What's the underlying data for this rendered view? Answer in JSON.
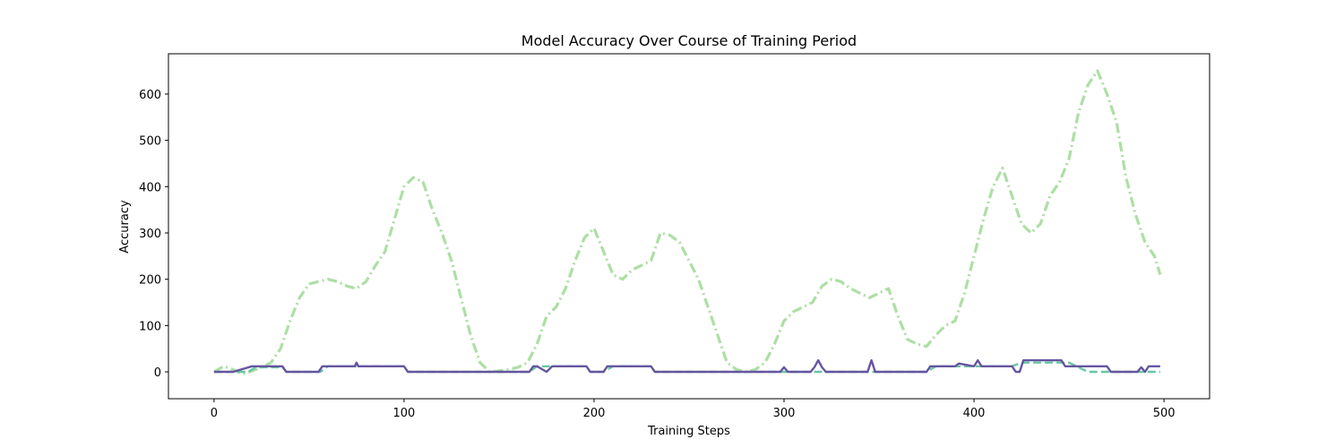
{
  "chart_data": {
    "type": "line",
    "title": "Model Accuracy Over Course of Training Period",
    "xlabel": "Training Steps",
    "ylabel": "Accuracy",
    "xlim": [
      -24,
      524
    ],
    "ylim": [
      -58,
      687
    ],
    "xticks": [
      0,
      100,
      200,
      300,
      400,
      500
    ],
    "yticks": [
      0,
      100,
      200,
      300,
      400,
      500,
      600
    ],
    "grid": false,
    "legend": "none",
    "series": [
      {
        "style": "dashdot",
        "color": "#addfa4",
        "width": 3.2,
        "x": [
          0,
          5,
          10,
          15,
          20,
          25,
          30,
          35,
          40,
          45,
          50,
          55,
          60,
          65,
          70,
          75,
          80,
          85,
          90,
          95,
          100,
          105,
          110,
          115,
          120,
          125,
          130,
          135,
          140,
          145,
          150,
          155,
          160,
          165,
          170,
          175,
          180,
          185,
          190,
          195,
          200,
          205,
          210,
          215,
          220,
          225,
          230,
          235,
          240,
          245,
          250,
          255,
          260,
          265,
          270,
          275,
          280,
          285,
          290,
          295,
          300,
          305,
          310,
          315,
          320,
          325,
          330,
          335,
          340,
          345,
          350,
          355,
          360,
          365,
          370,
          375,
          380,
          385,
          390,
          395,
          400,
          405,
          410,
          415,
          420,
          425,
          430,
          435,
          440,
          445,
          450,
          455,
          460,
          465,
          470,
          475,
          480,
          485,
          490,
          495,
          498
        ],
        "y": [
          0,
          12,
          5,
          -5,
          2,
          10,
          20,
          50,
          110,
          160,
          190,
          195,
          200,
          195,
          185,
          180,
          195,
          230,
          260,
          330,
          400,
          420,
          410,
          350,
          300,
          240,
          160,
          80,
          20,
          0,
          2,
          5,
          10,
          20,
          60,
          120,
          140,
          180,
          240,
          290,
          310,
          260,
          210,
          200,
          220,
          230,
          240,
          300,
          295,
          280,
          240,
          200,
          140,
          80,
          20,
          5,
          0,
          5,
          20,
          60,
          110,
          130,
          140,
          150,
          185,
          200,
          195,
          180,
          170,
          160,
          170,
          180,
          120,
          70,
          60,
          55,
          80,
          100,
          110,
          170,
          250,
          330,
          400,
          440,
          380,
          320,
          300,
          320,
          380,
          410,
          460,
          560,
          620,
          650,
          600,
          540,
          420,
          340,
          280,
          250,
          210
        ]
      },
      {
        "style": "solid",
        "color": "#6655a0",
        "width": 2.4,
        "x": [
          0,
          10,
          20,
          36,
          38,
          55,
          57,
          74,
          75,
          76,
          100,
          102,
          166,
          168,
          170,
          175,
          178,
          180,
          185,
          190,
          196,
          198,
          205,
          207,
          230,
          232,
          298,
          300,
          302,
          314,
          316,
          318,
          320,
          322,
          344,
          346,
          348,
          350,
          375,
          377,
          390,
          392,
          400,
          402,
          404,
          406,
          420,
          422,
          424,
          426,
          446,
          448,
          470,
          472,
          486,
          488,
          490,
          492,
          498
        ],
        "y": [
          0,
          0,
          12,
          12,
          0,
          0,
          12,
          12,
          20,
          12,
          12,
          0,
          0,
          12,
          12,
          0,
          12,
          12,
          12,
          12,
          12,
          0,
          0,
          12,
          12,
          0,
          0,
          10,
          0,
          0,
          10,
          25,
          10,
          0,
          0,
          25,
          0,
          0,
          0,
          12,
          12,
          18,
          12,
          25,
          12,
          12,
          12,
          0,
          0,
          25,
          25,
          12,
          12,
          0,
          0,
          10,
          0,
          12,
          12
        ]
      },
      {
        "style": "dashed",
        "color": "#68c6a4",
        "width": 2.4,
        "x": [
          0,
          18,
          22,
          36,
          38,
          56,
          60,
          100,
          102,
          166,
          170,
          196,
          198,
          205,
          210,
          230,
          232,
          298,
          300,
          375,
          380,
          420,
          425,
          450,
          460,
          470,
          498
        ],
        "y": [
          0,
          0,
          10,
          10,
          0,
          0,
          12,
          12,
          0,
          0,
          12,
          12,
          0,
          0,
          12,
          12,
          0,
          0,
          0,
          0,
          12,
          12,
          20,
          20,
          0,
          0,
          0
        ]
      }
    ]
  }
}
